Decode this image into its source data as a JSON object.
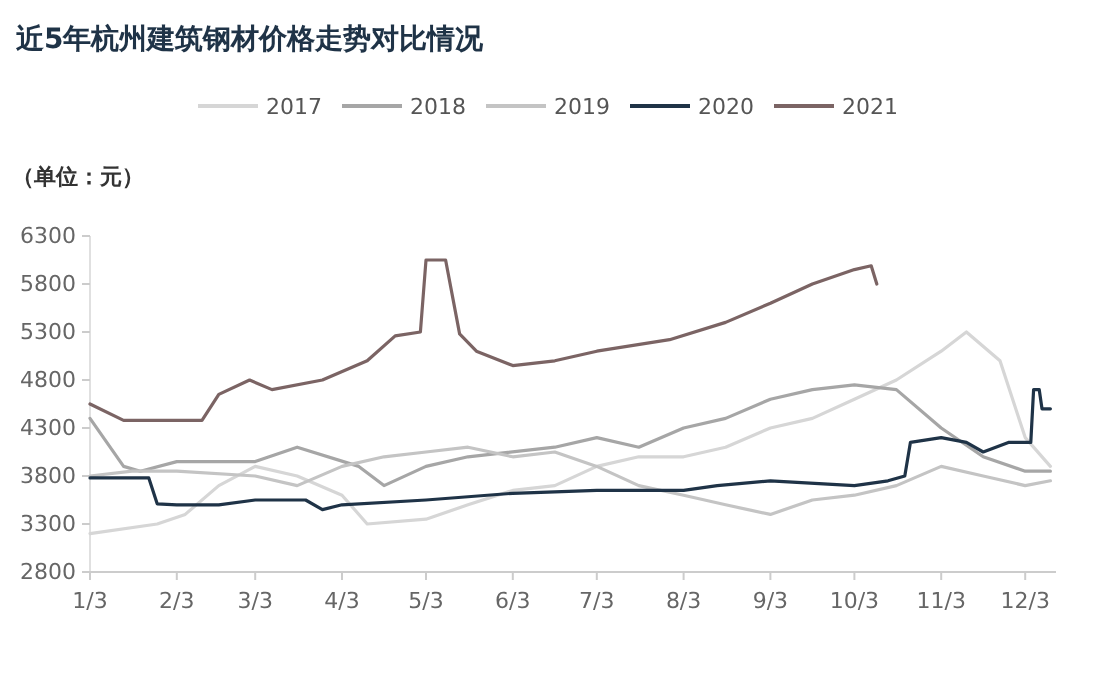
{
  "chart_data": {
    "type": "line",
    "title": "近5年杭州建筑钢材价格走势对比情况",
    "annotations": [
      "（单位：元）"
    ],
    "xlim": [
      "--01-03",
      "--12-14"
    ],
    "xticks": [
      {
        "value": "--01-03",
        "label": "1/3"
      },
      {
        "value": "--02-03",
        "label": "2/3"
      },
      {
        "value": "--03-03",
        "label": "3/3"
      },
      {
        "value": "--04-03",
        "label": "4/3"
      },
      {
        "value": "--05-03",
        "label": "5/3"
      },
      {
        "value": "--06-03",
        "label": "6/3"
      },
      {
        "value": "--07-03",
        "label": "7/3"
      },
      {
        "value": "--08-03",
        "label": "8/3"
      },
      {
        "value": "--09-03",
        "label": "9/3"
      },
      {
        "value": "--10-03",
        "label": "10/3"
      },
      {
        "value": "--11-03",
        "label": "11/3"
      },
      {
        "value": "--12-03",
        "label": "12/3"
      }
    ],
    "ylim": [
      2800,
      6300
    ],
    "yticks": [
      2800,
      3300,
      3800,
      4300,
      4800,
      5300,
      5800,
      6300
    ],
    "legend": "top",
    "grid": false,
    "series": [
      {
        "name": "2017",
        "color": "#d6d6d6",
        "x": [
          "--01-03",
          "--01-27",
          "--02-06",
          "--02-18",
          "--03-03",
          "--03-18",
          "--04-03",
          "--04-12",
          "--05-03",
          "--05-18",
          "--06-03",
          "--06-18",
          "--07-03",
          "--07-18",
          "--08-03",
          "--08-18",
          "--09-03",
          "--09-18",
          "--10-03",
          "--10-18",
          "--11-03",
          "--11-12",
          "--11-24",
          "--12-03",
          "--12-12"
        ],
        "values": [
          3200,
          3300,
          3400,
          3700,
          3900,
          3800,
          3600,
          3300,
          3350,
          3500,
          3650,
          3700,
          3900,
          4000,
          4000,
          4100,
          4300,
          4400,
          4600,
          4800,
          5100,
          5300,
          5000,
          4200,
          3900
        ]
      },
      {
        "name": "2018",
        "color": "#a6a6a6",
        "x": [
          "--01-03",
          "--01-15",
          "--01-21",
          "--02-03",
          "--03-03",
          "--03-18",
          "--04-09",
          "--04-18",
          "--05-03",
          "--05-18",
          "--06-18",
          "--07-03",
          "--07-18",
          "--08-03",
          "--08-18",
          "--09-03",
          "--09-18",
          "--10-03",
          "--10-18",
          "--11-03",
          "--11-18",
          "--12-03",
          "--12-12"
        ],
        "values": [
          4400,
          3900,
          3850,
          3950,
          3950,
          4100,
          3900,
          3700,
          3900,
          4000,
          4100,
          4200,
          4100,
          4300,
          4400,
          4600,
          4700,
          4750,
          4700,
          4300,
          4000,
          3850,
          3850
        ]
      },
      {
        "name": "2019",
        "color": "#c4c4c4",
        "x": [
          "--01-03",
          "--01-18",
          "--02-03",
          "--03-03",
          "--03-18",
          "--04-03",
          "--04-18",
          "--05-03",
          "--05-18",
          "--06-03",
          "--06-18",
          "--07-03",
          "--07-18",
          "--08-03",
          "--08-18",
          "--09-03",
          "--09-18",
          "--10-03",
          "--10-18",
          "--11-03",
          "--11-18",
          "--12-03",
          "--12-12"
        ],
        "values": [
          3800,
          3850,
          3850,
          3800,
          3700,
          3900,
          4000,
          4050,
          4100,
          4000,
          4050,
          3900,
          3700,
          3600,
          3500,
          3400,
          3550,
          3600,
          3700,
          3900,
          3800,
          3700,
          3750
        ]
      },
      {
        "name": "2020",
        "color": "#1f3347",
        "x": [
          "--01-03",
          "--01-24",
          "--01-27",
          "--02-03",
          "--02-18",
          "--03-03",
          "--03-21",
          "--03-27",
          "--04-03",
          "--05-03",
          "--06-03",
          "--07-03",
          "--08-03",
          "--08-15",
          "--09-03",
          "--10-03",
          "--10-15",
          "--10-21",
          "--10-23",
          "--11-03",
          "--11-12",
          "--11-18",
          "--11-27",
          "--12-05",
          "--12-06",
          "--12-08",
          "--12-09",
          "--12-12"
        ],
        "values": [
          3780,
          3780,
          3510,
          3500,
          3500,
          3550,
          3550,
          3450,
          3500,
          3550,
          3620,
          3650,
          3650,
          3700,
          3750,
          3700,
          3750,
          3800,
          4150,
          4200,
          4150,
          4050,
          4150,
          4150,
          4700,
          4700,
          4500,
          4500
        ]
      },
      {
        "name": "2021",
        "color": "#7b6464",
        "x": [
          "--01-03",
          "--01-15",
          "--02-12",
          "--02-18",
          "--03-01",
          "--03-09",
          "--03-27",
          "--04-12",
          "--04-22",
          "--05-01",
          "--05-03",
          "--05-10",
          "--05-15",
          "--05-21",
          "--06-03",
          "--06-18",
          "--07-03",
          "--07-29",
          "--08-18",
          "--09-03",
          "--09-18",
          "--10-03",
          "--10-09",
          "--10-11"
        ],
        "values": [
          4550,
          4380,
          4380,
          4650,
          4800,
          4700,
          4800,
          5000,
          5260,
          5300,
          6050,
          6050,
          5280,
          5100,
          4950,
          5000,
          5100,
          5220,
          5400,
          5600,
          5800,
          5950,
          5990,
          5800
        ]
      }
    ]
  }
}
